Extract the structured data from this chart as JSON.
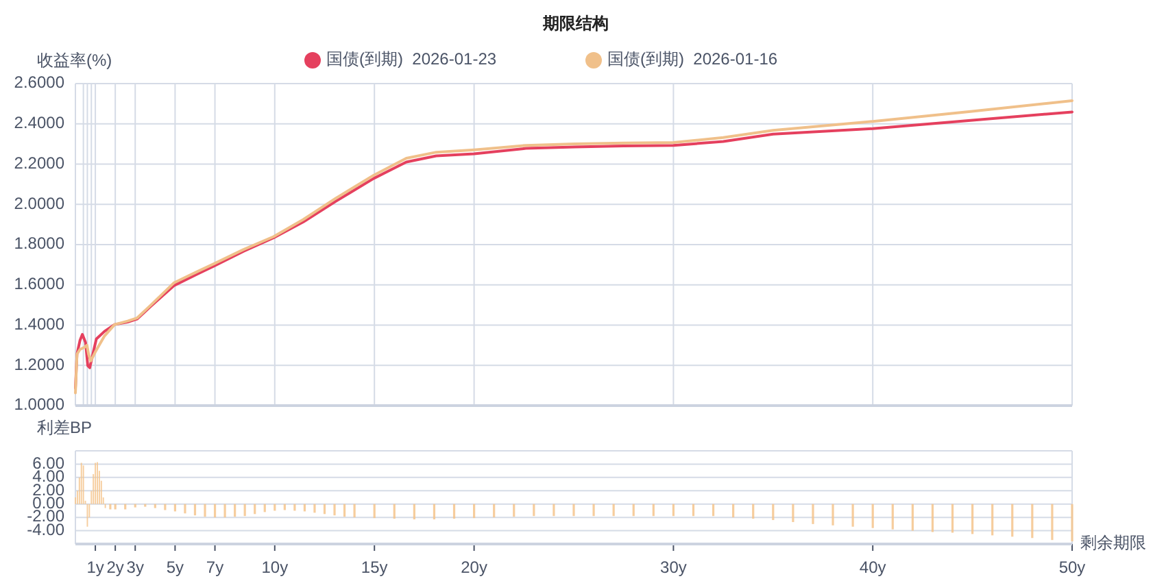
{
  "chart_data": [
    {
      "type": "line",
      "title": "期限结构",
      "ylabel": "收益率(%)",
      "legend": "top",
      "grid": true,
      "tick_labels": "y",
      "marker": "none",
      "line_style": "solid",
      "xlim": [
        0,
        50
      ],
      "xticks": [
        {
          "value": 0.4,
          "label": null
        },
        {
          "value": 0.6,
          "label": null
        },
        {
          "value": 0.8,
          "label": null
        },
        {
          "value": 1,
          "label": null
        },
        {
          "value": 2,
          "label": null
        },
        {
          "value": 3,
          "label": null
        },
        {
          "value": 5,
          "label": null
        },
        {
          "value": 7,
          "label": null
        },
        {
          "value": 10,
          "label": null
        },
        {
          "value": 15,
          "label": null
        },
        {
          "value": 20,
          "label": null
        },
        {
          "value": 30,
          "label": null
        },
        {
          "value": 40,
          "label": null
        },
        {
          "value": 50,
          "label": null
        }
      ],
      "ylim": [
        1.0,
        2.6
      ],
      "yticks": [
        {
          "value": 1.0,
          "label": "1.0000"
        },
        {
          "value": 1.2,
          "label": "1.2000"
        },
        {
          "value": 1.4,
          "label": "1.4000"
        },
        {
          "value": 1.6,
          "label": "1.6000"
        },
        {
          "value": 1.8,
          "label": "1.8000"
        },
        {
          "value": 2.0,
          "label": "2.0000"
        },
        {
          "value": 2.2,
          "label": "2.2000"
        },
        {
          "value": 2.4,
          "label": "2.4000"
        },
        {
          "value": 2.6,
          "label": "2.6000"
        }
      ],
      "series": [
        {
          "name": "国债(到期)  2026-01-23",
          "color": "#e5405e",
          "x": [
            0,
            0.08,
            0.23,
            0.35,
            0.51,
            0.62,
            0.72,
            0.85,
            1.05,
            1.46,
            1.97,
            2.62,
            3.09,
            3.79,
            4.94,
            6.1,
            6.96,
            8.42,
            9.95,
            11.44,
            13.06,
            14.97,
            16.6,
            18.1,
            20,
            22.6,
            25.05,
            27.5,
            30,
            32.5,
            35,
            40,
            44.9,
            50
          ],
          "values": [
            1.086,
            1.256,
            1.324,
            1.354,
            1.313,
            1.199,
            1.188,
            1.245,
            1.331,
            1.369,
            1.403,
            1.415,
            1.43,
            1.494,
            1.596,
            1.653,
            1.694,
            1.766,
            1.834,
            1.913,
            2.015,
            2.129,
            2.21,
            2.241,
            2.251,
            2.278,
            2.285,
            2.29,
            2.293,
            2.312,
            2.349,
            2.376,
            2.417,
            2.459
          ]
        },
        {
          "name": "国债(到期)  2026-01-16",
          "color": "#f0c08a",
          "x": [
            0,
            0.08,
            0.23,
            0.46,
            0.58,
            0.66,
            0.77,
            1.0,
            1.46,
            1.97,
            2.62,
            3.09,
            3.79,
            4.94,
            6.1,
            6.96,
            8.42,
            9.95,
            11.44,
            13.06,
            14.97,
            16.6,
            18.1,
            20,
            22.6,
            25.05,
            27.5,
            30,
            32.5,
            35,
            40,
            44.9,
            50
          ],
          "values": [
            1.063,
            1.256,
            1.279,
            1.29,
            1.3,
            1.256,
            1.222,
            1.267,
            1.346,
            1.403,
            1.42,
            1.435,
            1.5,
            1.61,
            1.665,
            1.705,
            1.775,
            1.84,
            1.925,
            2.03,
            2.145,
            2.229,
            2.259,
            2.271,
            2.293,
            2.3,
            2.305,
            2.307,
            2.332,
            2.368,
            2.412,
            2.461,
            2.515
          ]
        }
      ]
    },
    {
      "type": "bar",
      "ylabel": "利差BP",
      "xlabel": "剩余期限",
      "grid": "y",
      "xlim": [
        0,
        50
      ],
      "xticks": [
        {
          "value": 1,
          "label": "1y"
        },
        {
          "value": 2,
          "label": "2y"
        },
        {
          "value": 3,
          "label": "3y"
        },
        {
          "value": 5,
          "label": "5y"
        },
        {
          "value": 7,
          "label": "7y"
        },
        {
          "value": 10,
          "label": "10y"
        },
        {
          "value": 15,
          "label": "15y"
        },
        {
          "value": 20,
          "label": "20y"
        },
        {
          "value": 30,
          "label": "30y"
        },
        {
          "value": 40,
          "label": "40y"
        },
        {
          "value": 50,
          "label": "50y"
        }
      ],
      "ylim": [
        -6,
        8
      ],
      "yticks": [
        {
          "value": -6,
          "label": null
        },
        {
          "value": -4,
          "label": "-4.00"
        },
        {
          "value": -2,
          "label": "-2.00"
        },
        {
          "value": 0,
          "label": "0.00"
        },
        {
          "value": 2,
          "label": "2.00"
        },
        {
          "value": 4,
          "label": "4.00"
        },
        {
          "value": 6,
          "label": "6.00"
        },
        {
          "value": 8,
          "label": null
        }
      ],
      "series": [
        {
          "color": "#f5c48c",
          "x": [
            0,
            0.1,
            0.2,
            0.3,
            0.4,
            0.5,
            0.6,
            0.7,
            0.8,
            0.9,
            1.0,
            1.1,
            1.2,
            1.3,
            1.4,
            1.5,
            1.75,
            2,
            2.5,
            3,
            3.5,
            4,
            4.5,
            5,
            5.5,
            6,
            6.5,
            7,
            7.5,
            8,
            8.5,
            9,
            9.5,
            10,
            10.5,
            11,
            11.5,
            12,
            12.5,
            13,
            13.5,
            14,
            15,
            16,
            17,
            18,
            19,
            20,
            21,
            22,
            23,
            24,
            25,
            26,
            27,
            28,
            29,
            30,
            31,
            32,
            33,
            34,
            35,
            36,
            37,
            38,
            39,
            40,
            41,
            42,
            43,
            44,
            45,
            46,
            47,
            48,
            49,
            50
          ],
          "values": [
            1,
            2,
            4,
            6.2,
            5.8,
            0.5,
            -3.4,
            -2,
            2,
            4.5,
            6.2,
            6.3,
            5,
            3.5,
            1,
            -0.6,
            -0.8,
            -0.8,
            -0.8,
            -0.5,
            -0.4,
            -0.6,
            -0.9,
            -1.1,
            -1.4,
            -1.7,
            -1.9,
            -2.0,
            -2.0,
            -1.9,
            -1.8,
            -1.5,
            -1.2,
            -1.0,
            -0.9,
            -1.0,
            -1.1,
            -1.3,
            -1.5,
            -1.7,
            -1.9,
            -2.0,
            -2.1,
            -2.2,
            -2.3,
            -2.3,
            -2.2,
            -2.1,
            -2.0,
            -1.9,
            -1.8,
            -1.8,
            -1.8,
            -1.8,
            -1.8,
            -1.8,
            -1.8,
            -1.8,
            -1.8,
            -1.8,
            -2.0,
            -2.2,
            -2.4,
            -2.7,
            -3.0,
            -3.2,
            -3.4,
            -3.6,
            -3.8,
            -4.0,
            -4.2,
            -4.3,
            -4.5,
            -4.7,
            -4.9,
            -5.1,
            -5.4,
            -5.6
          ]
        }
      ]
    }
  ]
}
